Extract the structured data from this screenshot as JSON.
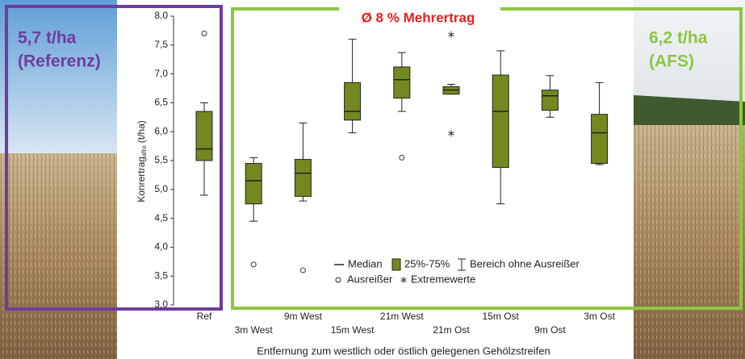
{
  "chart_data": {
    "type": "box",
    "categories": [
      "Ref",
      "3m West",
      "9m West",
      "15m West",
      "21m West",
      "21m Ost",
      "15m Ost",
      "9m Ost",
      "3m Ost"
    ],
    "boxes": [
      {
        "min": 4.9,
        "q1": 5.5,
        "median": 5.7,
        "q3": 6.35,
        "max": 6.5,
        "outliers": [
          7.7
        ],
        "extremes": []
      },
      {
        "min": 4.45,
        "q1": 4.75,
        "median": 5.15,
        "q3": 5.45,
        "max": 5.55,
        "outliers": [
          3.7
        ],
        "extremes": []
      },
      {
        "min": 4.8,
        "q1": 4.88,
        "median": 5.28,
        "q3": 5.52,
        "max": 6.15,
        "outliers": [
          3.6
        ],
        "extremes": []
      },
      {
        "min": 5.98,
        "q1": 6.2,
        "median": 6.35,
        "q3": 6.85,
        "max": 7.6,
        "outliers": [],
        "extremes": []
      },
      {
        "min": 6.35,
        "q1": 6.58,
        "median": 6.9,
        "q3": 7.12,
        "max": 7.37,
        "outliers": [
          5.55
        ],
        "extremes": []
      },
      {
        "min": 6.65,
        "q1": 6.65,
        "median": 6.72,
        "q3": 6.78,
        "max": 6.82,
        "outliers": [],
        "extremes": [
          7.68,
          5.97
        ]
      },
      {
        "min": 4.75,
        "q1": 5.38,
        "median": 6.35,
        "q3": 6.98,
        "max": 7.4,
        "outliers": [],
        "extremes": []
      },
      {
        "min": 6.25,
        "q1": 6.37,
        "median": 6.62,
        "q3": 6.72,
        "max": 6.97,
        "outliers": [],
        "extremes": []
      },
      {
        "min": 5.43,
        "q1": 5.45,
        "median": 5.98,
        "q3": 6.3,
        "max": 6.85,
        "outliers": [],
        "extremes": []
      }
    ],
    "color": "#72891f",
    "ylim": [
      3.0,
      8.0
    ],
    "yticks": [
      {
        "value": 3,
        "label": "3,0"
      },
      {
        "value": 3.5,
        "label": "3,5"
      },
      {
        "value": 4,
        "label": "4,0"
      },
      {
        "value": 4.5,
        "label": "4,5"
      },
      {
        "value": 5,
        "label": "5,0"
      },
      {
        "value": 5.5,
        "label": "5,5"
      },
      {
        "value": 6,
        "label": "6,0"
      },
      {
        "value": 6.5,
        "label": "6,5"
      },
      {
        "value": 7,
        "label": "7,0"
      },
      {
        "value": 7.5,
        "label": "7,5"
      },
      {
        "value": 8,
        "label": "8,0"
      }
    ],
    "ylabel": "Konrertrag",
    "ylabel_sub": "afro",
    "ylabel_unit": "(t/ha)",
    "xlabel": "Entfernung zum westlich oder östlich gelegenen Gehölzstreifen",
    "annotations": {
      "title": "Ø 8 % Mehrertrag",
      "ref_value": "5,7 t/ha",
      "ref_label": "(Referenz)",
      "afs_value": "6,2 t/ha",
      "afs_label": "(AFS)"
    },
    "legend": {
      "median": "Median",
      "box": "25%-75%",
      "whisker": "Bereich ohne Ausreißer",
      "outlier": "Ausreißer",
      "extreme": "Extremewerte"
    }
  }
}
